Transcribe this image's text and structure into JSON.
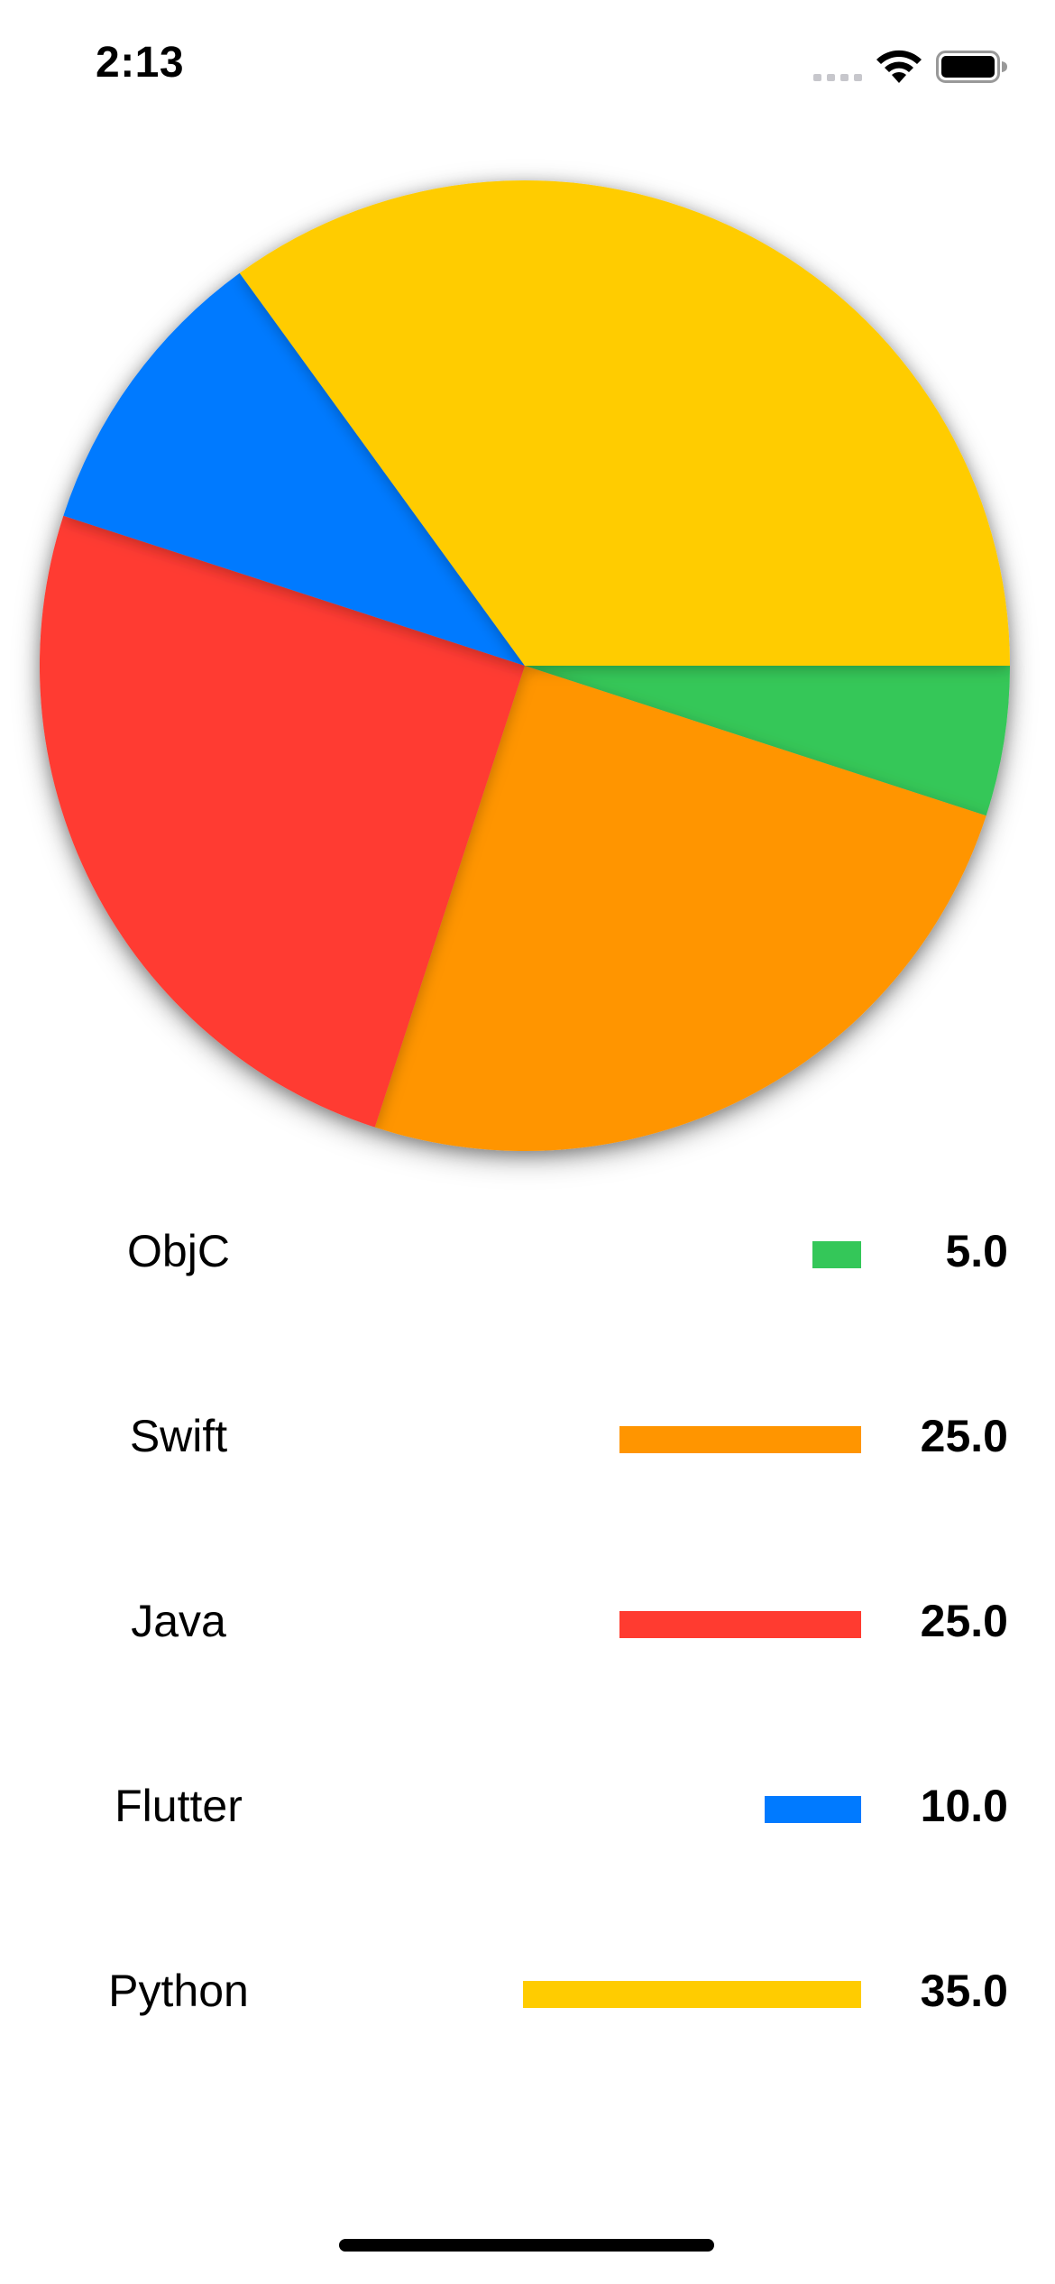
{
  "status_bar": {
    "time": "2:13",
    "icons": [
      "signal-dots-icon",
      "wifi-icon",
      "battery-icon"
    ]
  },
  "chart_data": {
    "type": "pie",
    "title": "",
    "categories": [
      "ObjC",
      "Swift",
      "Java",
      "Flutter",
      "Python"
    ],
    "values": [
      5.0,
      25.0,
      25.0,
      10.0,
      35.0
    ],
    "value_labels": [
      "5.0",
      "25.0",
      "25.0",
      "10.0",
      "35.0"
    ],
    "colors": [
      "#34C759",
      "#FF9500",
      "#FF3B30",
      "#007AFF",
      "#FFCC00"
    ],
    "start_angle_deg": 0,
    "direction": "clockwise",
    "legend_position": "bottom"
  }
}
